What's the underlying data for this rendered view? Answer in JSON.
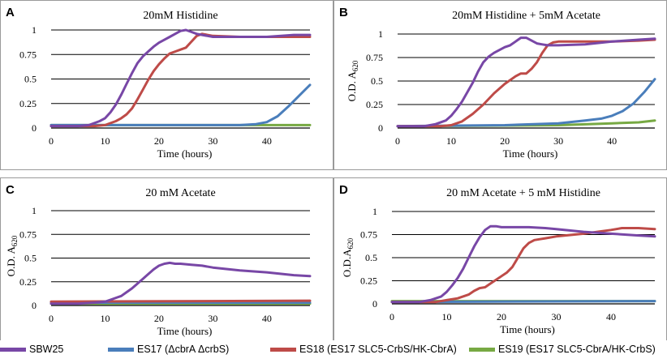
{
  "colors": {
    "SBW25": "#7847a6",
    "ES17": "#4a7ebb",
    "ES18": "#be4b48",
    "ES19": "#77a943"
  },
  "legend": [
    {
      "key": "SBW25",
      "label": "SBW25"
    },
    {
      "key": "ES17",
      "label": "ES17 (ΔcbrA ΔcrbS)"
    },
    {
      "key": "ES18",
      "label": "ES18 (ES17 SLC5-CrbS/HK-CbrA)"
    },
    {
      "key": "ES19",
      "label": "ES19 (ES17 SLC5-CbrA/HK-CrbS)"
    }
  ],
  "chart_data": [
    {
      "type": "line",
      "panel": "A",
      "title": "20mM Histidine",
      "xlabel": "Time (hours)",
      "ylabel": "",
      "xlim": [
        0,
        48
      ],
      "ylim": [
        0,
        1
      ],
      "xticks": [
        "0",
        "10",
        "20",
        "30",
        "40"
      ],
      "yticks": [
        "0",
        "0.25",
        "0.5",
        "0.75",
        "1"
      ],
      "series": [
        {
          "name": "SBW25",
          "x": [
            0,
            5,
            7,
            9,
            10,
            11,
            12,
            13,
            14,
            15,
            16,
            17,
            18,
            19,
            20,
            21,
            22,
            23,
            24,
            25,
            26,
            27,
            28,
            29,
            30,
            32,
            35,
            40,
            45,
            48
          ],
          "values": [
            0.02,
            0.02,
            0.03,
            0.07,
            0.1,
            0.16,
            0.24,
            0.34,
            0.45,
            0.56,
            0.66,
            0.73,
            0.78,
            0.83,
            0.87,
            0.9,
            0.93,
            0.96,
            0.99,
            1.0,
            0.98,
            0.96,
            0.95,
            0.94,
            0.93,
            0.93,
            0.93,
            0.93,
            0.95,
            0.95
          ]
        },
        {
          "name": "ES17",
          "x": [
            0,
            20,
            30,
            35,
            38,
            40,
            42,
            44,
            46,
            48
          ],
          "values": [
            0.03,
            0.03,
            0.03,
            0.03,
            0.04,
            0.06,
            0.12,
            0.22,
            0.33,
            0.44
          ]
        },
        {
          "name": "ES18",
          "x": [
            0,
            8,
            10,
            12,
            13,
            14,
            15,
            16,
            17,
            18,
            19,
            20,
            21,
            22,
            23,
            24,
            25,
            26,
            27,
            28,
            29,
            30,
            35,
            40,
            48
          ],
          "values": [
            0.02,
            0.02,
            0.03,
            0.07,
            0.1,
            0.14,
            0.2,
            0.29,
            0.39,
            0.49,
            0.58,
            0.65,
            0.71,
            0.76,
            0.78,
            0.8,
            0.82,
            0.88,
            0.94,
            0.96,
            0.95,
            0.94,
            0.93,
            0.93,
            0.93
          ]
        },
        {
          "name": "ES19",
          "x": [
            0,
            48
          ],
          "values": [
            0.03,
            0.03
          ]
        }
      ]
    },
    {
      "type": "line",
      "panel": "B",
      "title": "20mM Histidine + 5mM Acetate",
      "xlabel": "Time (hours)",
      "ylabel": "O.D. A620",
      "xlim": [
        0,
        48
      ],
      "ylim": [
        0,
        1
      ],
      "xticks": [
        "0",
        "10",
        "20",
        "30",
        "40"
      ],
      "yticks": [
        "0",
        "0.25",
        "0.5",
        "0.75",
        "1"
      ],
      "series": [
        {
          "name": "SBW25",
          "x": [
            0,
            5,
            7,
            9,
            10,
            11,
            12,
            13,
            14,
            15,
            16,
            17,
            18,
            19,
            20,
            21,
            22,
            23,
            24,
            25,
            26,
            27,
            28,
            30,
            35,
            40,
            45,
            48
          ],
          "values": [
            0.02,
            0.02,
            0.04,
            0.08,
            0.13,
            0.2,
            0.28,
            0.38,
            0.48,
            0.6,
            0.7,
            0.76,
            0.8,
            0.83,
            0.86,
            0.88,
            0.92,
            0.96,
            0.96,
            0.93,
            0.9,
            0.89,
            0.88,
            0.88,
            0.89,
            0.92,
            0.94,
            0.95
          ]
        },
        {
          "name": "ES17",
          "x": [
            0,
            20,
            30,
            35,
            38,
            40,
            42,
            44,
            46,
            48
          ],
          "values": [
            0.02,
            0.03,
            0.05,
            0.08,
            0.1,
            0.13,
            0.18,
            0.26,
            0.38,
            0.52
          ]
        },
        {
          "name": "ES18",
          "x": [
            0,
            8,
            10,
            12,
            14,
            16,
            18,
            20,
            22,
            23,
            24,
            25,
            26,
            27,
            28,
            29,
            30,
            32,
            35,
            40,
            45,
            48
          ],
          "values": [
            0.02,
            0.02,
            0.03,
            0.07,
            0.15,
            0.25,
            0.37,
            0.47,
            0.55,
            0.58,
            0.58,
            0.63,
            0.7,
            0.8,
            0.88,
            0.91,
            0.92,
            0.92,
            0.92,
            0.92,
            0.93,
            0.94
          ]
        },
        {
          "name": "ES19",
          "x": [
            0,
            30,
            35,
            40,
            45,
            48
          ],
          "values": [
            0.02,
            0.03,
            0.04,
            0.05,
            0.06,
            0.08
          ]
        }
      ]
    },
    {
      "type": "line",
      "panel": "C",
      "title": "20 mM Acetate",
      "xlabel": "Time (hours)",
      "ylabel": "O.D. A620",
      "xlim": [
        0,
        48
      ],
      "ylim": [
        0,
        1
      ],
      "xticks": [
        "0",
        "10",
        "20",
        "30",
        "40"
      ],
      "yticks": [
        "0",
        "0.25",
        "0.5",
        "0.75",
        "1"
      ],
      "series": [
        {
          "name": "SBW25",
          "x": [
            0,
            5,
            8,
            10,
            11,
            12,
            13,
            14,
            15,
            16,
            17,
            18,
            19,
            20,
            21,
            22,
            23,
            24,
            26,
            28,
            30,
            35,
            40,
            45,
            48
          ],
          "values": [
            0.02,
            0.02,
            0.03,
            0.04,
            0.06,
            0.08,
            0.1,
            0.14,
            0.18,
            0.23,
            0.28,
            0.33,
            0.38,
            0.42,
            0.44,
            0.45,
            0.44,
            0.44,
            0.43,
            0.42,
            0.4,
            0.37,
            0.35,
            0.32,
            0.31
          ]
        },
        {
          "name": "ES17",
          "x": [
            0,
            48
          ],
          "values": [
            0.03,
            0.03
          ]
        },
        {
          "name": "ES18",
          "x": [
            0,
            48
          ],
          "values": [
            0.04,
            0.05
          ]
        },
        {
          "name": "ES19",
          "x": [
            0,
            48
          ],
          "values": [
            0.02,
            0.02
          ]
        }
      ]
    },
    {
      "type": "line",
      "panel": "D",
      "title": "20 mM Acetate + 5 mM Histidine",
      "xlabel": "Time (hours)",
      "ylabel": "O.D.A620",
      "xlim": [
        0,
        48
      ],
      "ylim": [
        0,
        1
      ],
      "xticks": [
        "0",
        "10",
        "20",
        "30",
        "40"
      ],
      "yticks": [
        "0",
        "0.25",
        "0.5",
        "0.75",
        "1"
      ],
      "series": [
        {
          "name": "SBW25",
          "x": [
            0,
            5,
            7,
            9,
            10,
            11,
            12,
            13,
            14,
            15,
            16,
            17,
            18,
            19,
            20,
            22,
            25,
            28,
            30,
            35,
            40,
            45,
            48
          ],
          "values": [
            0.02,
            0.02,
            0.04,
            0.08,
            0.13,
            0.2,
            0.28,
            0.38,
            0.5,
            0.62,
            0.72,
            0.8,
            0.84,
            0.84,
            0.83,
            0.83,
            0.83,
            0.82,
            0.81,
            0.78,
            0.76,
            0.74,
            0.73
          ]
        },
        {
          "name": "ES17",
          "x": [
            0,
            48
          ],
          "values": [
            0.02,
            0.03
          ]
        },
        {
          "name": "ES18",
          "x": [
            0,
            8,
            10,
            12,
            14,
            15,
            16,
            17,
            18,
            19,
            20,
            21,
            22,
            23,
            24,
            25,
            26,
            27,
            28,
            30,
            35,
            40,
            42,
            45,
            48
          ],
          "values": [
            0.02,
            0.02,
            0.04,
            0.06,
            0.1,
            0.14,
            0.17,
            0.18,
            0.22,
            0.26,
            0.3,
            0.34,
            0.4,
            0.5,
            0.6,
            0.66,
            0.69,
            0.7,
            0.71,
            0.73,
            0.76,
            0.8,
            0.82,
            0.82,
            0.81
          ]
        },
        {
          "name": "ES19",
          "x": [
            0,
            48
          ],
          "values": [
            0.03,
            0.03
          ]
        }
      ]
    }
  ]
}
